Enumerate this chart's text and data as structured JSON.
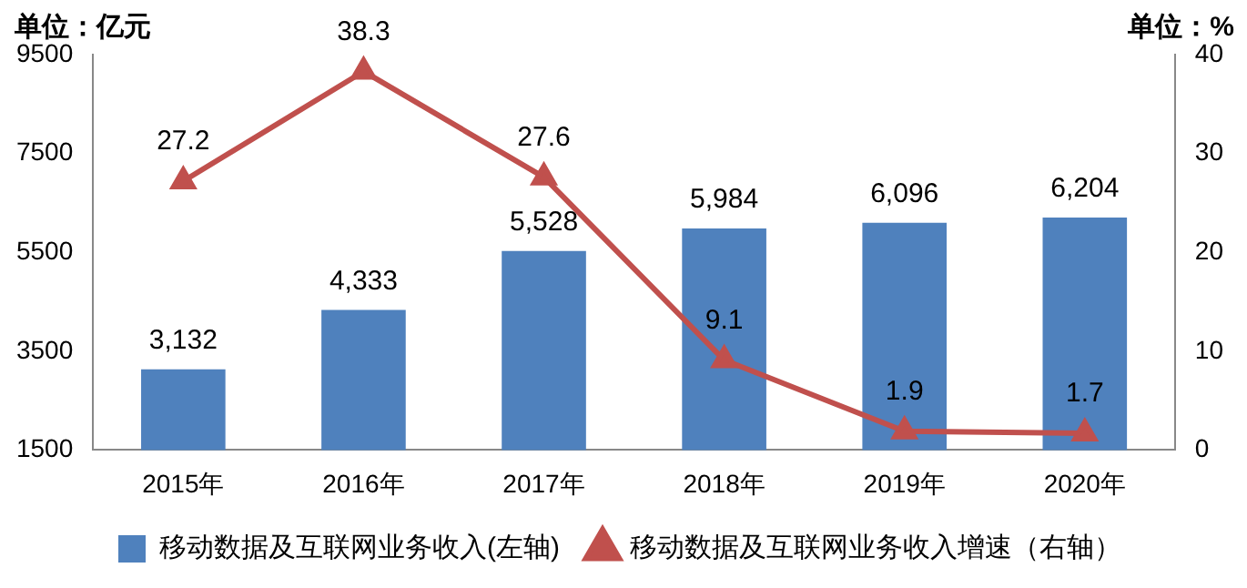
{
  "chart_data": {
    "type": "bar",
    "ylabel": "单位：亿元",
    "y2label": "单位：%",
    "categories": [
      "2015年",
      "2016年",
      "2017年",
      "2018年",
      "2019年",
      "2020年"
    ],
    "series": [
      {
        "name": "移动数据及互联网业务收入(左轴)",
        "color": "#4f81bd",
        "values": [
          3132,
          4333,
          5528,
          5984,
          6096,
          6204
        ],
        "value_labels": [
          "3,132",
          "4,333",
          "5,528",
          "5,984",
          "6,096",
          "6,204"
        ]
      },
      {
        "name": "移动数据及互联网业务收入增速（右轴）",
        "type": "line",
        "axis": "y2",
        "color": "#c0504d",
        "marker": "triangle",
        "values": [
          27.2,
          38.3,
          27.6,
          9.1,
          1.9,
          1.7
        ],
        "value_labels": [
          "27.2",
          "38.3",
          "27.6",
          "9.1",
          "1.9",
          "1.7"
        ]
      }
    ],
    "ylim": [
      1500,
      9500
    ],
    "yticks": [
      1500,
      3500,
      5500,
      7500,
      9500
    ],
    "y2lim": [
      0,
      40
    ],
    "y2ticks": [
      0,
      10,
      20,
      30,
      40
    ],
    "grid": false,
    "legend": "bottom"
  }
}
